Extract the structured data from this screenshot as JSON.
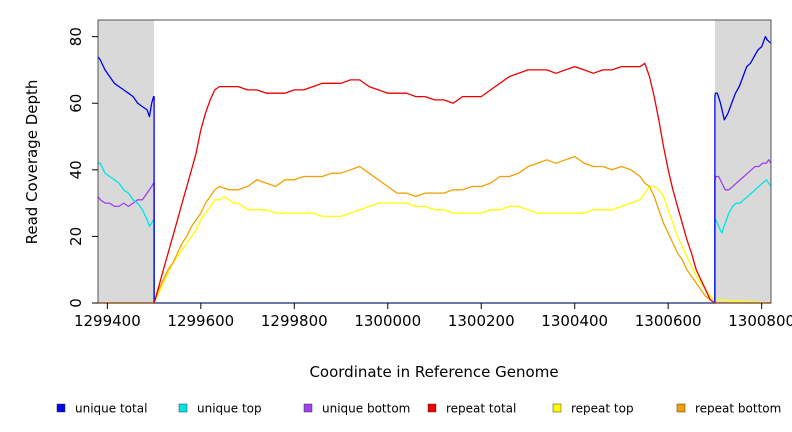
{
  "chart_data": {
    "type": "line",
    "title": "",
    "xlabel": "Coordinate in Reference Genome",
    "ylabel": "Read Coverage Depth",
    "xlim": [
      1299380,
      1300820
    ],
    "ylim": [
      0,
      85
    ],
    "x_ticks": [
      1299400,
      1299600,
      1299800,
      1300000,
      1300200,
      1300400,
      1300600,
      1300800
    ],
    "x_tick_labels": [
      "1299400",
      "1299600",
      "1299800",
      "1300000",
      "1300200",
      "1300400",
      "1300600",
      "1300800"
    ],
    "y_ticks": [
      0,
      20,
      40,
      60,
      80
    ],
    "y_tick_labels": [
      "0",
      "20",
      "40",
      "60",
      "80"
    ],
    "shaded_regions": [
      {
        "x0": 1299380,
        "x1": 1299500,
        "color": "#d9d9d9"
      },
      {
        "x0": 1300700,
        "x1": 1300820,
        "color": "#d9d9d9"
      }
    ],
    "grid": false,
    "legend_placement": "bottom",
    "series": [
      {
        "name": "unique total",
        "color": "#0000ee",
        "x": [
          1299380,
          1299385,
          1299395,
          1299405,
          1299415,
          1299425,
          1299435,
          1299445,
          1299455,
          1299465,
          1299475,
          1299485,
          1299490,
          1299495,
          1299499,
          1299500,
          1299500,
          1300700,
          1300700,
          1300701,
          1300705,
          1300712,
          1300720,
          1300728,
          1300736,
          1300744,
          1300752,
          1300760,
          1300768,
          1300776,
          1300784,
          1300792,
          1300800,
          1300808,
          1300812,
          1300820
        ],
        "values": [
          74,
          73,
          70,
          68,
          66,
          65,
          64,
          63,
          62,
          60,
          59,
          58,
          56,
          60,
          62,
          62,
          0,
          0,
          62,
          63,
          63,
          60,
          55,
          57,
          60,
          63,
          65,
          68,
          71,
          72,
          74,
          76,
          77,
          80,
          79,
          78
        ]
      },
      {
        "name": "unique top",
        "color": "#00e5e5",
        "x": [
          1299380,
          1299385,
          1299395,
          1299405,
          1299415,
          1299425,
          1299435,
          1299445,
          1299455,
          1299465,
          1299475,
          1299485,
          1299490,
          1299495,
          1299499,
          1299500,
          1299500,
          1300700,
          1300700,
          1300702,
          1300708,
          1300715,
          1300722,
          1300730,
          1300738,
          1300746,
          1300754,
          1300762,
          1300770,
          1300778,
          1300786,
          1300794,
          1300802,
          1300810,
          1300815,
          1300820
        ],
        "values": [
          42,
          42,
          39,
          38,
          37,
          36,
          34,
          33,
          31,
          30,
          28,
          25,
          23,
          24,
          25,
          25,
          0,
          0,
          25,
          25,
          23,
          21,
          24,
          27,
          29,
          30,
          30,
          31,
          32,
          33,
          34,
          35,
          36,
          37,
          36,
          35
        ]
      },
      {
        "name": "unique bottom",
        "color": "#a040ee",
        "x": [
          1299380,
          1299385,
          1299395,
          1299405,
          1299415,
          1299425,
          1299435,
          1299445,
          1299455,
          1299465,
          1299475,
          1299485,
          1299490,
          1299495,
          1299499,
          1299500,
          1299500,
          1300700,
          1300700,
          1300702,
          1300708,
          1300715,
          1300722,
          1300730,
          1300738,
          1300746,
          1300754,
          1300762,
          1300770,
          1300778,
          1300786,
          1300794,
          1300802,
          1300810,
          1300815,
          1300820
        ],
        "values": [
          32,
          31,
          30,
          30,
          29,
          29,
          30,
          29,
          30,
          31,
          31,
          33,
          34,
          35,
          36,
          36,
          0,
          0,
          37,
          38,
          38,
          36,
          34,
          34,
          35,
          36,
          37,
          38,
          39,
          40,
          41,
          41,
          42,
          42,
          43,
          42
        ]
      },
      {
        "name": "repeat total",
        "color": "#ee0000",
        "x": [
          1299380,
          1299500,
          1299510,
          1299520,
          1299530,
          1299540,
          1299550,
          1299560,
          1299570,
          1299580,
          1299590,
          1299600,
          1299610,
          1299620,
          1299630,
          1299640,
          1299660,
          1299680,
          1299700,
          1299720,
          1299740,
          1299760,
          1299780,
          1299800,
          1299820,
          1299840,
          1299860,
          1299880,
          1299900,
          1299920,
          1299940,
          1299960,
          1299980,
          1300000,
          1300020,
          1300040,
          1300060,
          1300080,
          1300100,
          1300120,
          1300140,
          1300160,
          1300180,
          1300200,
          1300220,
          1300240,
          1300260,
          1300280,
          1300300,
          1300320,
          1300340,
          1300360,
          1300380,
          1300400,
          1300420,
          1300440,
          1300460,
          1300480,
          1300500,
          1300520,
          1300540,
          1300550,
          1300560,
          1300570,
          1300580,
          1300590,
          1300600,
          1300610,
          1300620,
          1300630,
          1300640,
          1300650,
          1300660,
          1300670,
          1300680,
          1300690,
          1300700,
          1300820
        ],
        "values": [
          0,
          0,
          5,
          10,
          15,
          20,
          25,
          30,
          35,
          40,
          45,
          52,
          57,
          61,
          64,
          65,
          65,
          65,
          64,
          64,
          63,
          63,
          63,
          64,
          64,
          65,
          66,
          66,
          66,
          67,
          67,
          65,
          64,
          63,
          63,
          63,
          62,
          62,
          61,
          61,
          60,
          62,
          62,
          62,
          64,
          66,
          68,
          69,
          70,
          70,
          70,
          69,
          70,
          71,
          70,
          69,
          70,
          70,
          71,
          71,
          71,
          72,
          68,
          62,
          55,
          47,
          40,
          34,
          29,
          24,
          19,
          15,
          10,
          7,
          4,
          1,
          0,
          0
        ]
      },
      {
        "name": "repeat top",
        "color": "#ffff00",
        "x": [
          1299380,
          1299500,
          1299510,
          1299520,
          1299530,
          1299540,
          1299550,
          1299560,
          1299570,
          1299580,
          1299590,
          1299600,
          1299610,
          1299620,
          1299630,
          1299640,
          1299650,
          1299660,
          1299670,
          1299680,
          1299690,
          1299700,
          1299720,
          1299740,
          1299760,
          1299780,
          1299800,
          1299820,
          1299840,
          1299860,
          1299880,
          1299900,
          1299920,
          1299940,
          1299960,
          1299980,
          1300000,
          1300020,
          1300040,
          1300060,
          1300080,
          1300100,
          1300120,
          1300140,
          1300160,
          1300180,
          1300200,
          1300220,
          1300240,
          1300260,
          1300280,
          1300300,
          1300320,
          1300340,
          1300360,
          1300380,
          1300400,
          1300420,
          1300440,
          1300460,
          1300480,
          1300500,
          1300520,
          1300540,
          1300550,
          1300560,
          1300570,
          1300580,
          1300590,
          1300600,
          1300610,
          1300620,
          1300630,
          1300640,
          1300650,
          1300660,
          1300670,
          1300680,
          1300690,
          1300700,
          1300820
        ],
        "values": [
          0,
          0,
          3,
          6,
          9,
          12,
          14,
          16,
          18,
          20,
          22,
          25,
          27,
          29,
          31,
          31,
          32,
          31,
          30,
          30,
          29,
          28,
          28,
          28,
          27,
          27,
          27,
          27,
          27,
          26,
          26,
          26,
          27,
          28,
          29,
          30,
          30,
          30,
          30,
          29,
          29,
          28,
          28,
          27,
          27,
          27,
          27,
          28,
          28,
          29,
          29,
          28,
          27,
          27,
          27,
          27,
          27,
          27,
          28,
          28,
          28,
          29,
          30,
          31,
          33,
          35,
          35,
          34,
          32,
          28,
          24,
          20,
          17,
          14,
          11,
          8,
          6,
          4,
          2,
          1,
          0
        ]
      },
      {
        "name": "repeat bottom",
        "color": "#f5a000",
        "x": [
          1299380,
          1299500,
          1299510,
          1299520,
          1299530,
          1299540,
          1299550,
          1299560,
          1299570,
          1299580,
          1299590,
          1299600,
          1299610,
          1299620,
          1299630,
          1299640,
          1299660,
          1299680,
          1299700,
          1299720,
          1299740,
          1299760,
          1299780,
          1299800,
          1299820,
          1299840,
          1299860,
          1299880,
          1299900,
          1299920,
          1299940,
          1299960,
          1299980,
          1300000,
          1300020,
          1300040,
          1300060,
          1300080,
          1300100,
          1300120,
          1300140,
          1300160,
          1300180,
          1300200,
          1300220,
          1300240,
          1300260,
          1300280,
          1300300,
          1300320,
          1300340,
          1300360,
          1300380,
          1300400,
          1300420,
          1300440,
          1300460,
          1300480,
          1300500,
          1300520,
          1300540,
          1300550,
          1300560,
          1300570,
          1300580,
          1300590,
          1300600,
          1300610,
          1300620,
          1300630,
          1300640,
          1300650,
          1300660,
          1300670,
          1300680,
          1300690,
          1300700,
          1300820
        ],
        "values": [
          0,
          0,
          4,
          7,
          10,
          12,
          15,
          18,
          20,
          23,
          25,
          27,
          30,
          32,
          34,
          35,
          34,
          34,
          35,
          37,
          36,
          35,
          37,
          37,
          38,
          38,
          38,
          39,
          39,
          40,
          41,
          39,
          37,
          35,
          33,
          33,
          32,
          33,
          33,
          33,
          34,
          34,
          35,
          35,
          36,
          38,
          38,
          39,
          41,
          42,
          43,
          42,
          43,
          44,
          42,
          41,
          41,
          40,
          41,
          40,
          38,
          36,
          35,
          32,
          28,
          24,
          21,
          18,
          15,
          13,
          10,
          8,
          6,
          4,
          2,
          1,
          0,
          0
        ]
      }
    ]
  }
}
